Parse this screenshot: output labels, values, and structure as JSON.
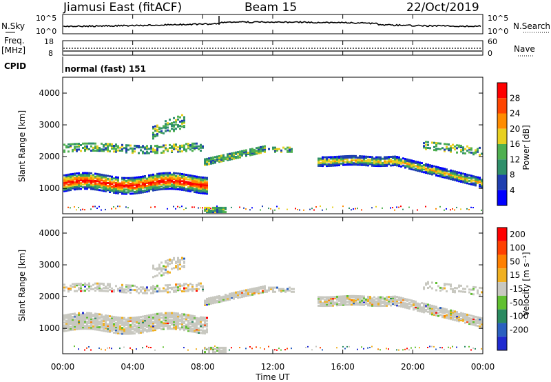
{
  "header": {
    "station": "Jiamusi East (fitACF)",
    "beam": "Beam 15",
    "date": "22/Oct/2019"
  },
  "noise_panel": {
    "left_label": "N.Sky",
    "right_label": "N.Search",
    "left_ticks": [
      "10^5",
      "10^0"
    ],
    "right_ticks": [
      "10^5",
      "10^0"
    ]
  },
  "freq_panel": {
    "left_label_1": "Freq.",
    "left_label_2": "[MHz]",
    "left_ticks": [
      "18",
      "8"
    ],
    "right_label": "Nave",
    "right_ticks": [
      "60",
      "0"
    ]
  },
  "cpid_panel": {
    "label": "CPID",
    "value": "normal (fast) 151"
  },
  "time_axis": {
    "label": "Time UT",
    "ticks": [
      "00:00",
      "04:00",
      "08:00",
      "12:00",
      "16:00",
      "20:00",
      "00:00"
    ]
  },
  "chart_data": [
    {
      "type": "heatmap",
      "name": "power",
      "ylabel": "Slant Range [km]",
      "yticks": [
        "1000",
        "2000",
        "3000",
        "4000"
      ],
      "ylim": [
        200,
        4500
      ],
      "x_range_hours": [
        0,
        24
      ],
      "colorbar": {
        "label": "Power [dB]",
        "ticks": [
          "4",
          "8",
          "12",
          "16",
          "20",
          "24",
          "28"
        ],
        "colors": [
          "#0000ff",
          "#1f3fb0",
          "#2f8f6a",
          "#4fb050",
          "#e8d020",
          "#ff8c00",
          "#ff4500",
          "#ff0000"
        ]
      }
    },
    {
      "type": "heatmap",
      "name": "velocity",
      "ylabel": "Slant Range [km]",
      "yticks": [
        "1000",
        "2000",
        "3000",
        "4000"
      ],
      "ylim": [
        200,
        4500
      ],
      "x_range_hours": [
        0,
        24
      ],
      "colorbar": {
        "label": "Velocity [m s⁻¹]",
        "ticks": [
          "200",
          "100",
          "50",
          "15",
          "-15",
          "-50",
          "-100",
          "-200"
        ],
        "colors": [
          "#1f2ad0",
          "#2a60c0",
          "#2a8a60",
          "#60c030",
          "#c8c8c0",
          "#f0b020",
          "#ff8000",
          "#ff4000",
          "#ff0000"
        ]
      }
    }
  ]
}
